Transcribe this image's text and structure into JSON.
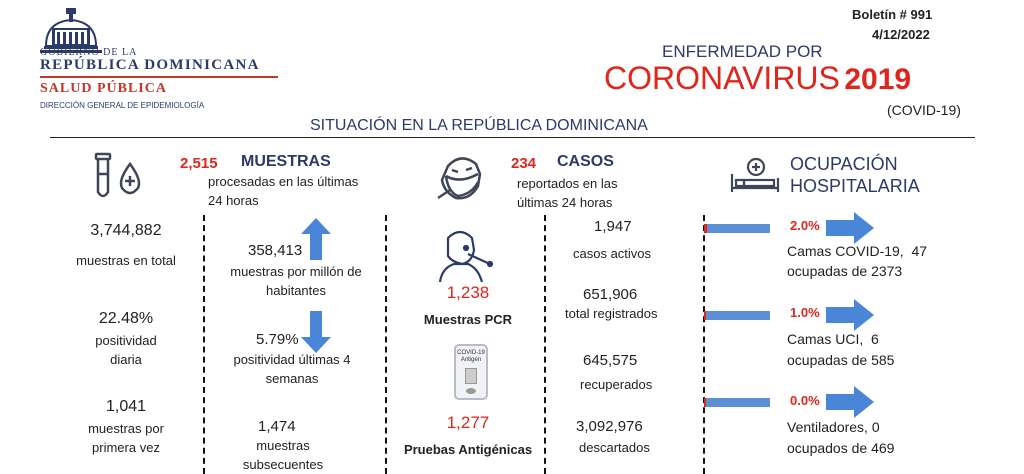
{
  "colors": {
    "accent_red": "#e0251b",
    "navy": "#2b3a67",
    "arrow_blue": "#4a86d8"
  },
  "header": {
    "gov_line1": "GOBIERNO DE LA",
    "gov_line2": "REPÚBLICA DOMINICANA",
    "ministry": "SALUD PÚBLICA",
    "direction": "DIRECCIÓN GENERAL DE EPIDEMIOLOGÍA",
    "bulletin": "Boletín # 991",
    "date": "4/12/2022",
    "title_top": "ENFERMEDAD POR",
    "title_main": "CORONAVIRUS",
    "title_year": "2019",
    "title_sub": "(COVID-19)",
    "situation": "SITUACIÓN EN LA REPÚBLICA DOMINICANA"
  },
  "muestras": {
    "count": "2,515",
    "label": "MUESTRAS",
    "desc": "procesadas en las últimas 24 horas",
    "total_value": "3,744,882",
    "total_label": "muestras en total",
    "positivity_value": "22.48%",
    "positivity_label": "positividad diaria",
    "first_value": "1,041",
    "first_label": "muestras por primera vez",
    "per_million_value": "358,413",
    "per_million_label": "muestras por millón de habitantes",
    "pos4w_value": "5.79%",
    "pos4w_label": "positividad últimas 4 semanas",
    "subsequent_value": "1,474",
    "subsequent_label": "muestras subsecuentes"
  },
  "casos": {
    "count": "234",
    "label": "CASOS",
    "desc": "reportados en las últimas 24 horas",
    "pcr_value": "1,238",
    "pcr_label": "Muestras PCR",
    "antigen_value": "1,277",
    "antigen_label": "Pruebas Antigénicas",
    "active_value": "1,947",
    "active_label": "casos activos",
    "registered_value": "651,906",
    "registered_label": "total registrados",
    "recovered_value": "645,575",
    "recovered_label": "recuperados",
    "discarded_value": "3,092,976",
    "discarded_label": "descartados",
    "test_kit_text": "COVID-19 Antigen"
  },
  "ocupacion": {
    "title_line1": "OCUPACIÓN",
    "title_line2": "HOSPITALARIA",
    "items": [
      {
        "pct": "2.0%",
        "fill": 0.02,
        "line1": "Camas COVID-19,  47",
        "line2": "ocupadas de 2373"
      },
      {
        "pct": "1.0%",
        "fill": 0.01,
        "line1": "Camas UCI,  6",
        "line2": "ocupadas de 585"
      },
      {
        "pct": "0.0%",
        "fill": 0.0,
        "line1": "Ventiladores, 0",
        "line2": "ocupados de 469"
      }
    ]
  }
}
